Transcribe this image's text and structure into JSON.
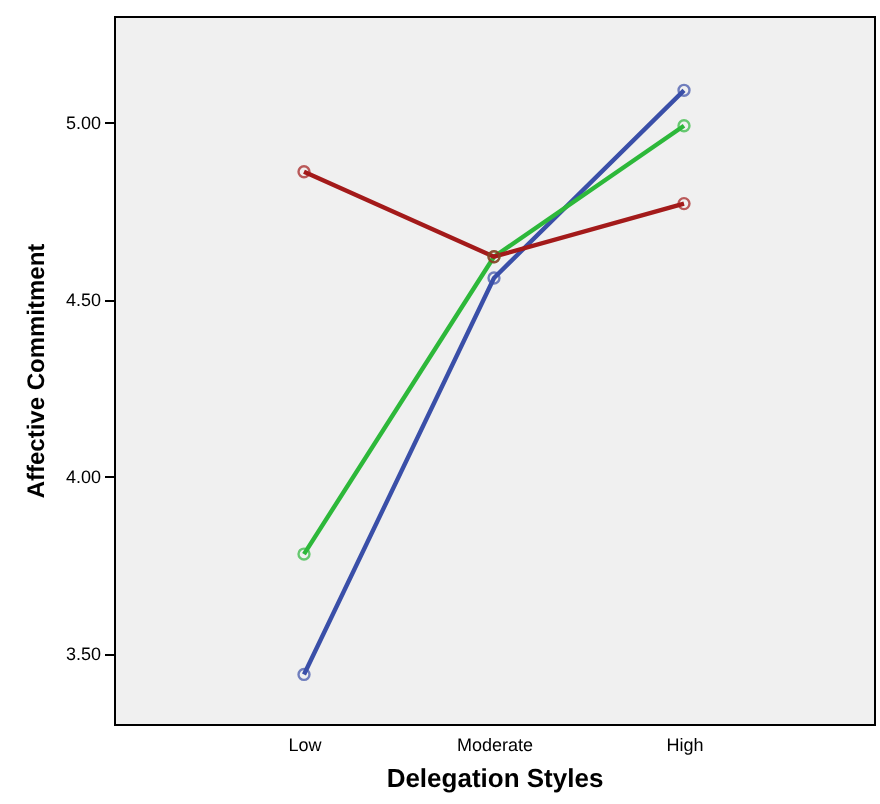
{
  "chart_data": {
    "type": "line",
    "xlabel": "Delegation Styles",
    "ylabel": "Affective Commitment",
    "categories": [
      "Low",
      "Moderate",
      "High"
    ],
    "series": [
      {
        "color": "#3a4fa8",
        "values": [
          3.44,
          4.56,
          5.09
        ]
      },
      {
        "color": "#2db83a",
        "values": [
          3.78,
          4.62,
          4.99
        ]
      },
      {
        "color": "#a31a1a",
        "values": [
          4.86,
          4.62,
          4.77
        ]
      }
    ],
    "ylim": [
      3.3,
      5.3
    ],
    "yticks": [
      {
        "value": 3.5,
        "label": "3.50"
      },
      {
        "value": 4,
        "label": "4.00"
      },
      {
        "value": 4.5,
        "label": "4.50"
      },
      {
        "value": 5,
        "label": "5.00"
      }
    ],
    "grid": false,
    "marker": "circle",
    "line_style": "solid"
  }
}
